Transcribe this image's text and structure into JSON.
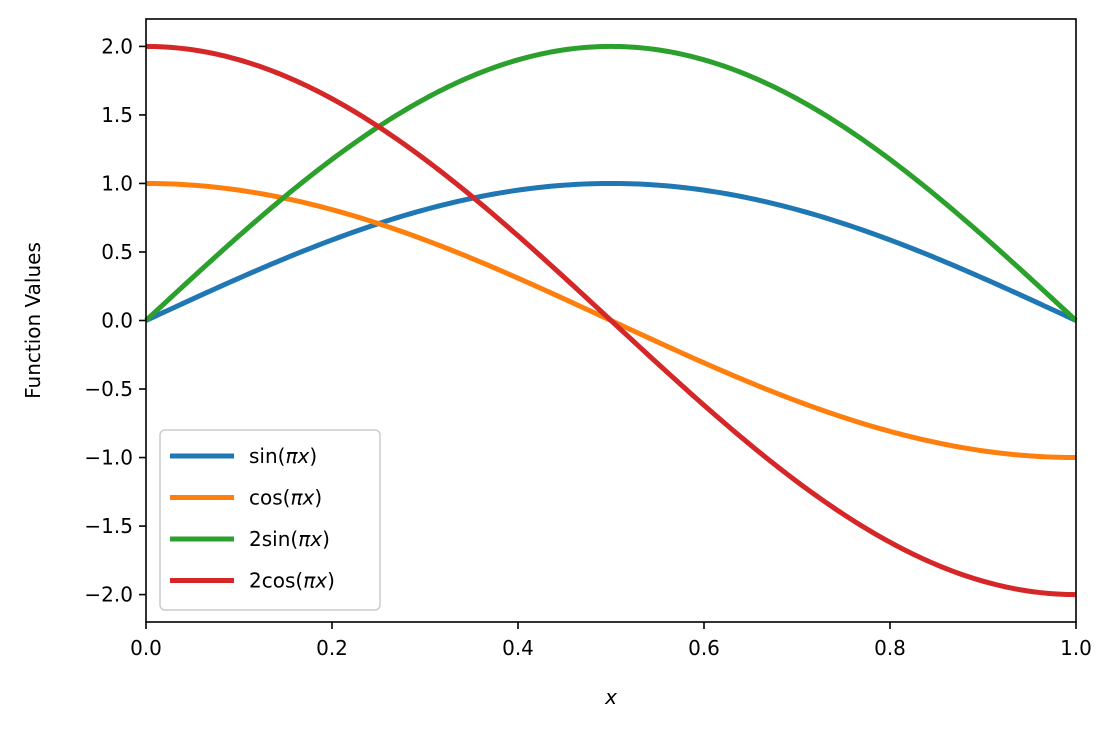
{
  "chart_data": {
    "type": "line",
    "title": "",
    "xlabel": "x",
    "ylabel": "Function Values",
    "xlim": [
      0.0,
      1.0
    ],
    "ylim": [
      -2.2,
      2.2
    ],
    "grid": false,
    "legend_position": "lower-left",
    "x_ticks": [
      "0.0",
      "0.2",
      "0.4",
      "0.6",
      "0.8",
      "1.0"
    ],
    "y_ticks": [
      "−2.0",
      "−1.5",
      "−1.0",
      "−0.5",
      "0.0",
      "0.5",
      "1.0",
      "1.5",
      "2.0"
    ],
    "x": [
      0.0,
      0.1,
      0.2,
      0.3,
      0.4,
      0.5,
      0.6,
      0.7,
      0.8,
      0.9,
      1.0
    ],
    "series": [
      {
        "name": "sin(πx)",
        "name_prefix": "sin(",
        "name_italic": "πx",
        "name_suffix": ")",
        "color": "#1f77b4",
        "values": [
          0.0,
          0.309,
          0.588,
          0.809,
          0.951,
          1.0,
          0.951,
          0.809,
          0.588,
          0.309,
          0.0
        ]
      },
      {
        "name": "cos(πx)",
        "name_prefix": "cos(",
        "name_italic": "πx",
        "name_suffix": ")",
        "color": "#ff7f0e",
        "values": [
          1.0,
          0.951,
          0.809,
          0.588,
          0.309,
          0.0,
          -0.309,
          -0.588,
          -0.809,
          -0.951,
          -1.0
        ]
      },
      {
        "name": "2sin(πx)",
        "name_prefix": "2sin(",
        "name_italic": "πx",
        "name_suffix": ")",
        "color": "#2ca02c",
        "values": [
          0.0,
          0.618,
          1.176,
          1.618,
          1.902,
          2.0,
          1.902,
          1.618,
          1.176,
          0.618,
          0.0
        ]
      },
      {
        "name": "2cos(πx)",
        "name_prefix": "2cos(",
        "name_italic": "πx",
        "name_suffix": ")",
        "color": "#d62728",
        "values": [
          2.0,
          1.902,
          1.618,
          1.176,
          0.618,
          0.0,
          -0.618,
          -1.176,
          -1.618,
          -1.902,
          -2.0
        ]
      }
    ]
  }
}
